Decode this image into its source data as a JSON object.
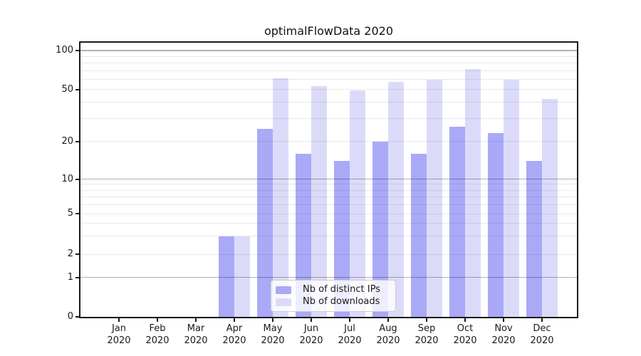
{
  "chart_data": {
    "type": "bar",
    "title": "optimalFlowData 2020",
    "x": {
      "months": [
        "Jan",
        "Feb",
        "Mar",
        "Apr",
        "May",
        "Jun",
        "Jul",
        "Aug",
        "Sep",
        "Oct",
        "Nov",
        "Dec"
      ],
      "year": "2020"
    },
    "series": [
      {
        "name": "Nb of distinct IPs",
        "color": "#a9a9f8",
        "values": [
          0,
          0,
          0,
          3,
          25,
          16,
          14,
          20,
          16,
          26,
          23,
          14
        ]
      },
      {
        "name": "Nb of downloads",
        "color": "#dbdbf9",
        "values": [
          0,
          0,
          0,
          3,
          61,
          53,
          49,
          57,
          59,
          72,
          59,
          42
        ]
      }
    ],
    "y_axis": {
      "scale": "symlog",
      "labeled_ticks": [
        0,
        1,
        2,
        5,
        10,
        20,
        50,
        100
      ],
      "decade_gridlines": [
        1,
        10,
        100
      ],
      "minor_gridlines": [
        2,
        3,
        4,
        5,
        6,
        7,
        8,
        9,
        20,
        30,
        40,
        50,
        60,
        70,
        80,
        90
      ],
      "ylim": [
        0,
        110
      ]
    },
    "legend": {
      "position": "lower-center",
      "entries": [
        "Nb of distinct IPs",
        "Nb of downloads"
      ]
    },
    "grid": {
      "decade_color": "rgba(0,0,0,0.30)",
      "minor_color": "rgba(0,0,0,0.085)"
    },
    "colors": {
      "spine": "#1a1a1a",
      "text": "#1a1a1a"
    }
  }
}
